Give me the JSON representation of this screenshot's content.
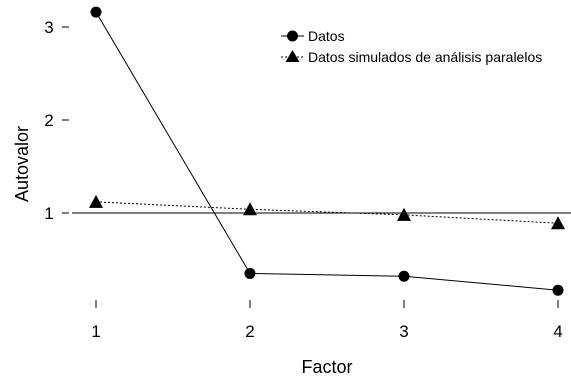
{
  "chart_data": {
    "type": "line",
    "x": [
      1,
      2,
      3,
      4
    ],
    "xlabel": "Factor",
    "ylabel": "Autovalor",
    "xlim": [
      1,
      4
    ],
    "ylim": [
      0,
      3
    ],
    "x_ticks": [
      "1",
      "2",
      "3",
      "4"
    ],
    "y_ticks": [
      "1",
      "2",
      "3"
    ],
    "reference_line": {
      "y": 1
    },
    "series": [
      {
        "name": "Datos",
        "values": [
          3.16,
          0.35,
          0.32,
          0.17
        ],
        "marker": "circle",
        "line_style": "solid"
      },
      {
        "name": "Datos simulados de análisis paralelos",
        "values": [
          1.12,
          1.04,
          0.98,
          0.89
        ],
        "marker": "triangle",
        "line_style": "dotted"
      }
    ],
    "legend_position": "top-right",
    "grid": false
  }
}
